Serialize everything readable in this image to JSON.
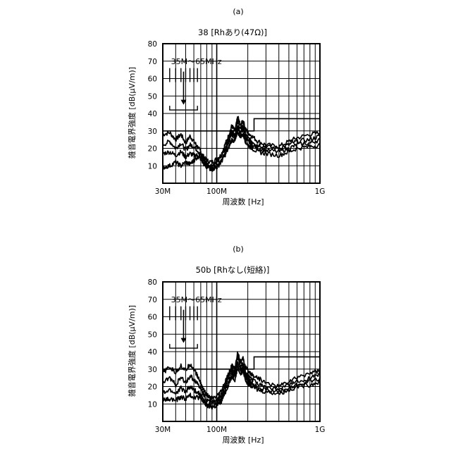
{
  "chart_data": [
    {
      "type": "line",
      "panel_label": "(a)",
      "title": "38 [Rhあり(47Ω)]",
      "xlabel": "周波数 [Hz]",
      "ylabel": "雑音電界強度 [dB(μV/m)]",
      "x_scale": "log",
      "xlim": [
        30000000,
        1000000000
      ],
      "ylim": [
        0,
        80
      ],
      "x_ticks": [
        {
          "value": 30000000,
          "label": "30M"
        },
        {
          "value": 100000000,
          "label": "100M"
        },
        {
          "value": 1000000000,
          "label": "1G"
        }
      ],
      "y_ticks": [
        10,
        20,
        30,
        40,
        50,
        60,
        70,
        80
      ],
      "grid": true,
      "annotation": {
        "text": "35M～65MHz",
        "range_hz": [
          35000000,
          65000000
        ],
        "bracket_level_db": 42,
        "arrow_to_db": 45
      },
      "limit_line": {
        "segments": [
          {
            "x": [
              30000000,
              230000000
            ],
            "y": 30
          },
          {
            "x": [
              230000000,
              1000000000
            ],
            "y": 37
          }
        ]
      },
      "series": [
        {
          "x": [
            30000000,
            35000000,
            40000000,
            45000000,
            50000000,
            55000000,
            60000000,
            65000000,
            70000000,
            75000000,
            80000000,
            90000000,
            100000000,
            110000000,
            120000000,
            130000000,
            140000000,
            150000000,
            160000000,
            170000000,
            180000000,
            190000000,
            200000000,
            220000000,
            250000000,
            300000000,
            400000000,
            500000000,
            600000000,
            800000000,
            1000000000
          ],
          "values": [
            28,
            29,
            25,
            28,
            23,
            27,
            24,
            21,
            18,
            15,
            13,
            12,
            14,
            16,
            22,
            27,
            33,
            30,
            38,
            33,
            36,
            31,
            29,
            27,
            24,
            22,
            21,
            24,
            26,
            28,
            29
          ]
        },
        {
          "x": [
            30000000,
            35000000,
            40000000,
            45000000,
            50000000,
            55000000,
            60000000,
            65000000,
            70000000,
            75000000,
            80000000,
            90000000,
            100000000,
            110000000,
            120000000,
            130000000,
            140000000,
            150000000,
            160000000,
            170000000,
            180000000,
            190000000,
            200000000,
            220000000,
            250000000,
            300000000,
            400000000,
            500000000,
            600000000,
            800000000,
            1000000000
          ],
          "values": [
            22,
            24,
            20,
            23,
            19,
            22,
            21,
            19,
            16,
            13,
            11,
            10,
            12,
            15,
            20,
            25,
            30,
            28,
            35,
            31,
            33,
            28,
            26,
            24,
            22,
            21,
            20,
            22,
            24,
            25,
            27
          ]
        },
        {
          "x": [
            30000000,
            35000000,
            40000000,
            45000000,
            50000000,
            55000000,
            60000000,
            65000000,
            70000000,
            75000000,
            80000000,
            90000000,
            100000000,
            110000000,
            120000000,
            130000000,
            140000000,
            150000000,
            160000000,
            170000000,
            180000000,
            190000000,
            200000000,
            220000000,
            250000000,
            300000000,
            400000000,
            500000000,
            600000000,
            800000000,
            1000000000
          ],
          "values": [
            17,
            18,
            16,
            18,
            15,
            17,
            16,
            16,
            14,
            11,
            9,
            8,
            10,
            13,
            18,
            23,
            28,
            26,
            32,
            29,
            31,
            26,
            24,
            22,
            20,
            19,
            18,
            20,
            22,
            23,
            25
          ]
        },
        {
          "x": [
            30000000,
            35000000,
            40000000,
            45000000,
            50000000,
            55000000,
            60000000,
            65000000,
            70000000,
            75000000,
            80000000,
            90000000,
            100000000,
            110000000,
            120000000,
            130000000,
            140000000,
            150000000,
            160000000,
            170000000,
            180000000,
            190000000,
            200000000,
            220000000,
            250000000,
            300000000,
            400000000,
            500000000,
            600000000,
            800000000,
            1000000000
          ],
          "values": [
            9,
            10,
            12,
            10,
            12,
            11,
            13,
            15,
            16,
            13,
            10,
            8,
            9,
            12,
            16,
            20,
            25,
            24,
            29,
            27,
            28,
            24,
            22,
            20,
            18,
            17,
            16,
            18,
            20,
            21,
            22
          ]
        }
      ]
    },
    {
      "type": "line",
      "panel_label": "(b)",
      "title": "50b [Rhなし(短絡)]",
      "xlabel": "周波数 [Hz]",
      "ylabel": "雑音電界強度 [dB(μV/m)]",
      "x_scale": "log",
      "xlim": [
        30000000,
        1000000000
      ],
      "ylim": [
        0,
        80
      ],
      "x_ticks": [
        {
          "value": 30000000,
          "label": "30M"
        },
        {
          "value": 100000000,
          "label": "100M"
        },
        {
          "value": 1000000000,
          "label": "1G"
        }
      ],
      "y_ticks": [
        10,
        20,
        30,
        40,
        50,
        60,
        70,
        80
      ],
      "grid": true,
      "annotation": {
        "text": "35M～65MHz",
        "range_hz": [
          35000000,
          65000000
        ],
        "bracket_level_db": 42,
        "arrow_to_db": 45
      },
      "limit_line": {
        "segments": [
          {
            "x": [
              30000000,
              230000000
            ],
            "y": 30
          },
          {
            "x": [
              230000000,
              1000000000
            ],
            "y": 37
          }
        ]
      },
      "series": [
        {
          "x": [
            30000000,
            35000000,
            40000000,
            45000000,
            50000000,
            55000000,
            60000000,
            65000000,
            70000000,
            75000000,
            80000000,
            90000000,
            100000000,
            110000000,
            120000000,
            130000000,
            140000000,
            150000000,
            160000000,
            170000000,
            180000000,
            190000000,
            200000000,
            220000000,
            250000000,
            300000000,
            400000000,
            500000000,
            600000000,
            800000000,
            1000000000
          ],
          "values": [
            28,
            31,
            28,
            32,
            29,
            33,
            30,
            26,
            22,
            18,
            15,
            13,
            14,
            17,
            22,
            27,
            32,
            30,
            40,
            34,
            36,
            31,
            29,
            27,
            25,
            22,
            20,
            23,
            25,
            28,
            29
          ]
        },
        {
          "x": [
            30000000,
            35000000,
            40000000,
            45000000,
            50000000,
            55000000,
            60000000,
            65000000,
            70000000,
            75000000,
            80000000,
            90000000,
            100000000,
            110000000,
            120000000,
            130000000,
            140000000,
            150000000,
            160000000,
            170000000,
            180000000,
            190000000,
            200000000,
            220000000,
            250000000,
            300000000,
            400000000,
            500000000,
            600000000,
            800000000,
            1000000000
          ],
          "values": [
            22,
            25,
            21,
            25,
            22,
            26,
            24,
            22,
            19,
            15,
            12,
            11,
            12,
            15,
            20,
            25,
            30,
            28,
            37,
            31,
            33,
            28,
            26,
            24,
            22,
            20,
            18,
            21,
            23,
            25,
            27
          ]
        },
        {
          "x": [
            30000000,
            35000000,
            40000000,
            45000000,
            50000000,
            55000000,
            60000000,
            65000000,
            70000000,
            75000000,
            80000000,
            90000000,
            100000000,
            110000000,
            120000000,
            130000000,
            140000000,
            150000000,
            160000000,
            170000000,
            180000000,
            190000000,
            200000000,
            220000000,
            250000000,
            300000000,
            400000000,
            500000000,
            600000000,
            800000000,
            1000000000
          ],
          "values": [
            16,
            18,
            16,
            19,
            17,
            20,
            18,
            17,
            15,
            12,
            10,
            9,
            10,
            13,
            18,
            23,
            28,
            26,
            34,
            29,
            31,
            26,
            24,
            22,
            20,
            18,
            17,
            19,
            21,
            23,
            25
          ]
        },
        {
          "x": [
            30000000,
            35000000,
            40000000,
            45000000,
            50000000,
            55000000,
            60000000,
            65000000,
            70000000,
            75000000,
            80000000,
            90000000,
            100000000,
            110000000,
            120000000,
            130000000,
            140000000,
            150000000,
            160000000,
            170000000,
            180000000,
            190000000,
            200000000,
            220000000,
            250000000,
            300000000,
            400000000,
            500000000,
            600000000,
            800000000,
            1000000000
          ],
          "values": [
            12,
            13,
            12,
            14,
            13,
            15,
            14,
            14,
            13,
            11,
            9,
            8,
            9,
            11,
            16,
            21,
            26,
            24,
            31,
            27,
            29,
            24,
            22,
            20,
            18,
            17,
            16,
            18,
            20,
            21,
            23
          ]
        }
      ]
    }
  ]
}
